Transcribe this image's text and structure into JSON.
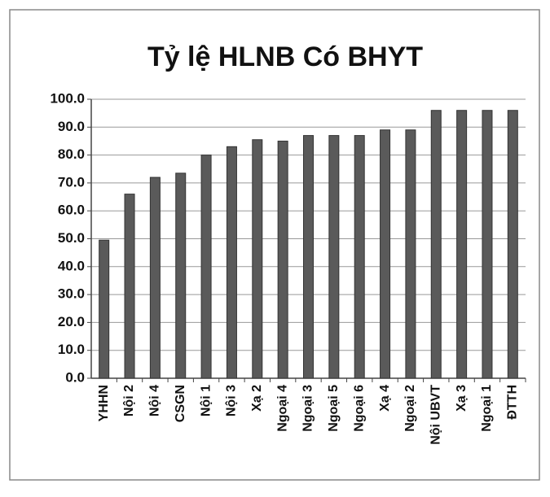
{
  "chart_data": {
    "type": "bar",
    "title": "Tỷ lệ HLNB Có BHYT",
    "categories": [
      "YHHN",
      "Nội 2",
      "Nội 4",
      "CSGN",
      "Nội 1",
      "Nội 3",
      "Xạ 2",
      "Ngoại 4",
      "Ngoại 3",
      "Ngoại 5",
      "Ngoại 6",
      "Xạ 4",
      "Ngoại 2",
      "Nội UBVT",
      "Xạ 3",
      "Ngoại 1",
      "ĐTTH"
    ],
    "values": [
      49.5,
      66,
      72,
      73.5,
      80,
      83,
      85.5,
      85,
      87,
      87,
      87,
      89,
      89,
      96,
      96,
      96,
      96
    ],
    "color": "#5a5a5a",
    "ylim": [
      0,
      100
    ],
    "yticks": [
      {
        "value": 0,
        "label": "0.0"
      },
      {
        "value": 10,
        "label": "10.0"
      },
      {
        "value": 20,
        "label": "20.0"
      },
      {
        "value": 30,
        "label": "30.0"
      },
      {
        "value": 40,
        "label": "40.0"
      },
      {
        "value": 50,
        "label": "50.0"
      },
      {
        "value": 60,
        "label": "60.0"
      },
      {
        "value": 70,
        "label": "70.0"
      },
      {
        "value": 80,
        "label": "80.0"
      },
      {
        "value": 90,
        "label": "90.0"
      },
      {
        "value": 100,
        "label": "100.0"
      }
    ],
    "grid": true
  }
}
